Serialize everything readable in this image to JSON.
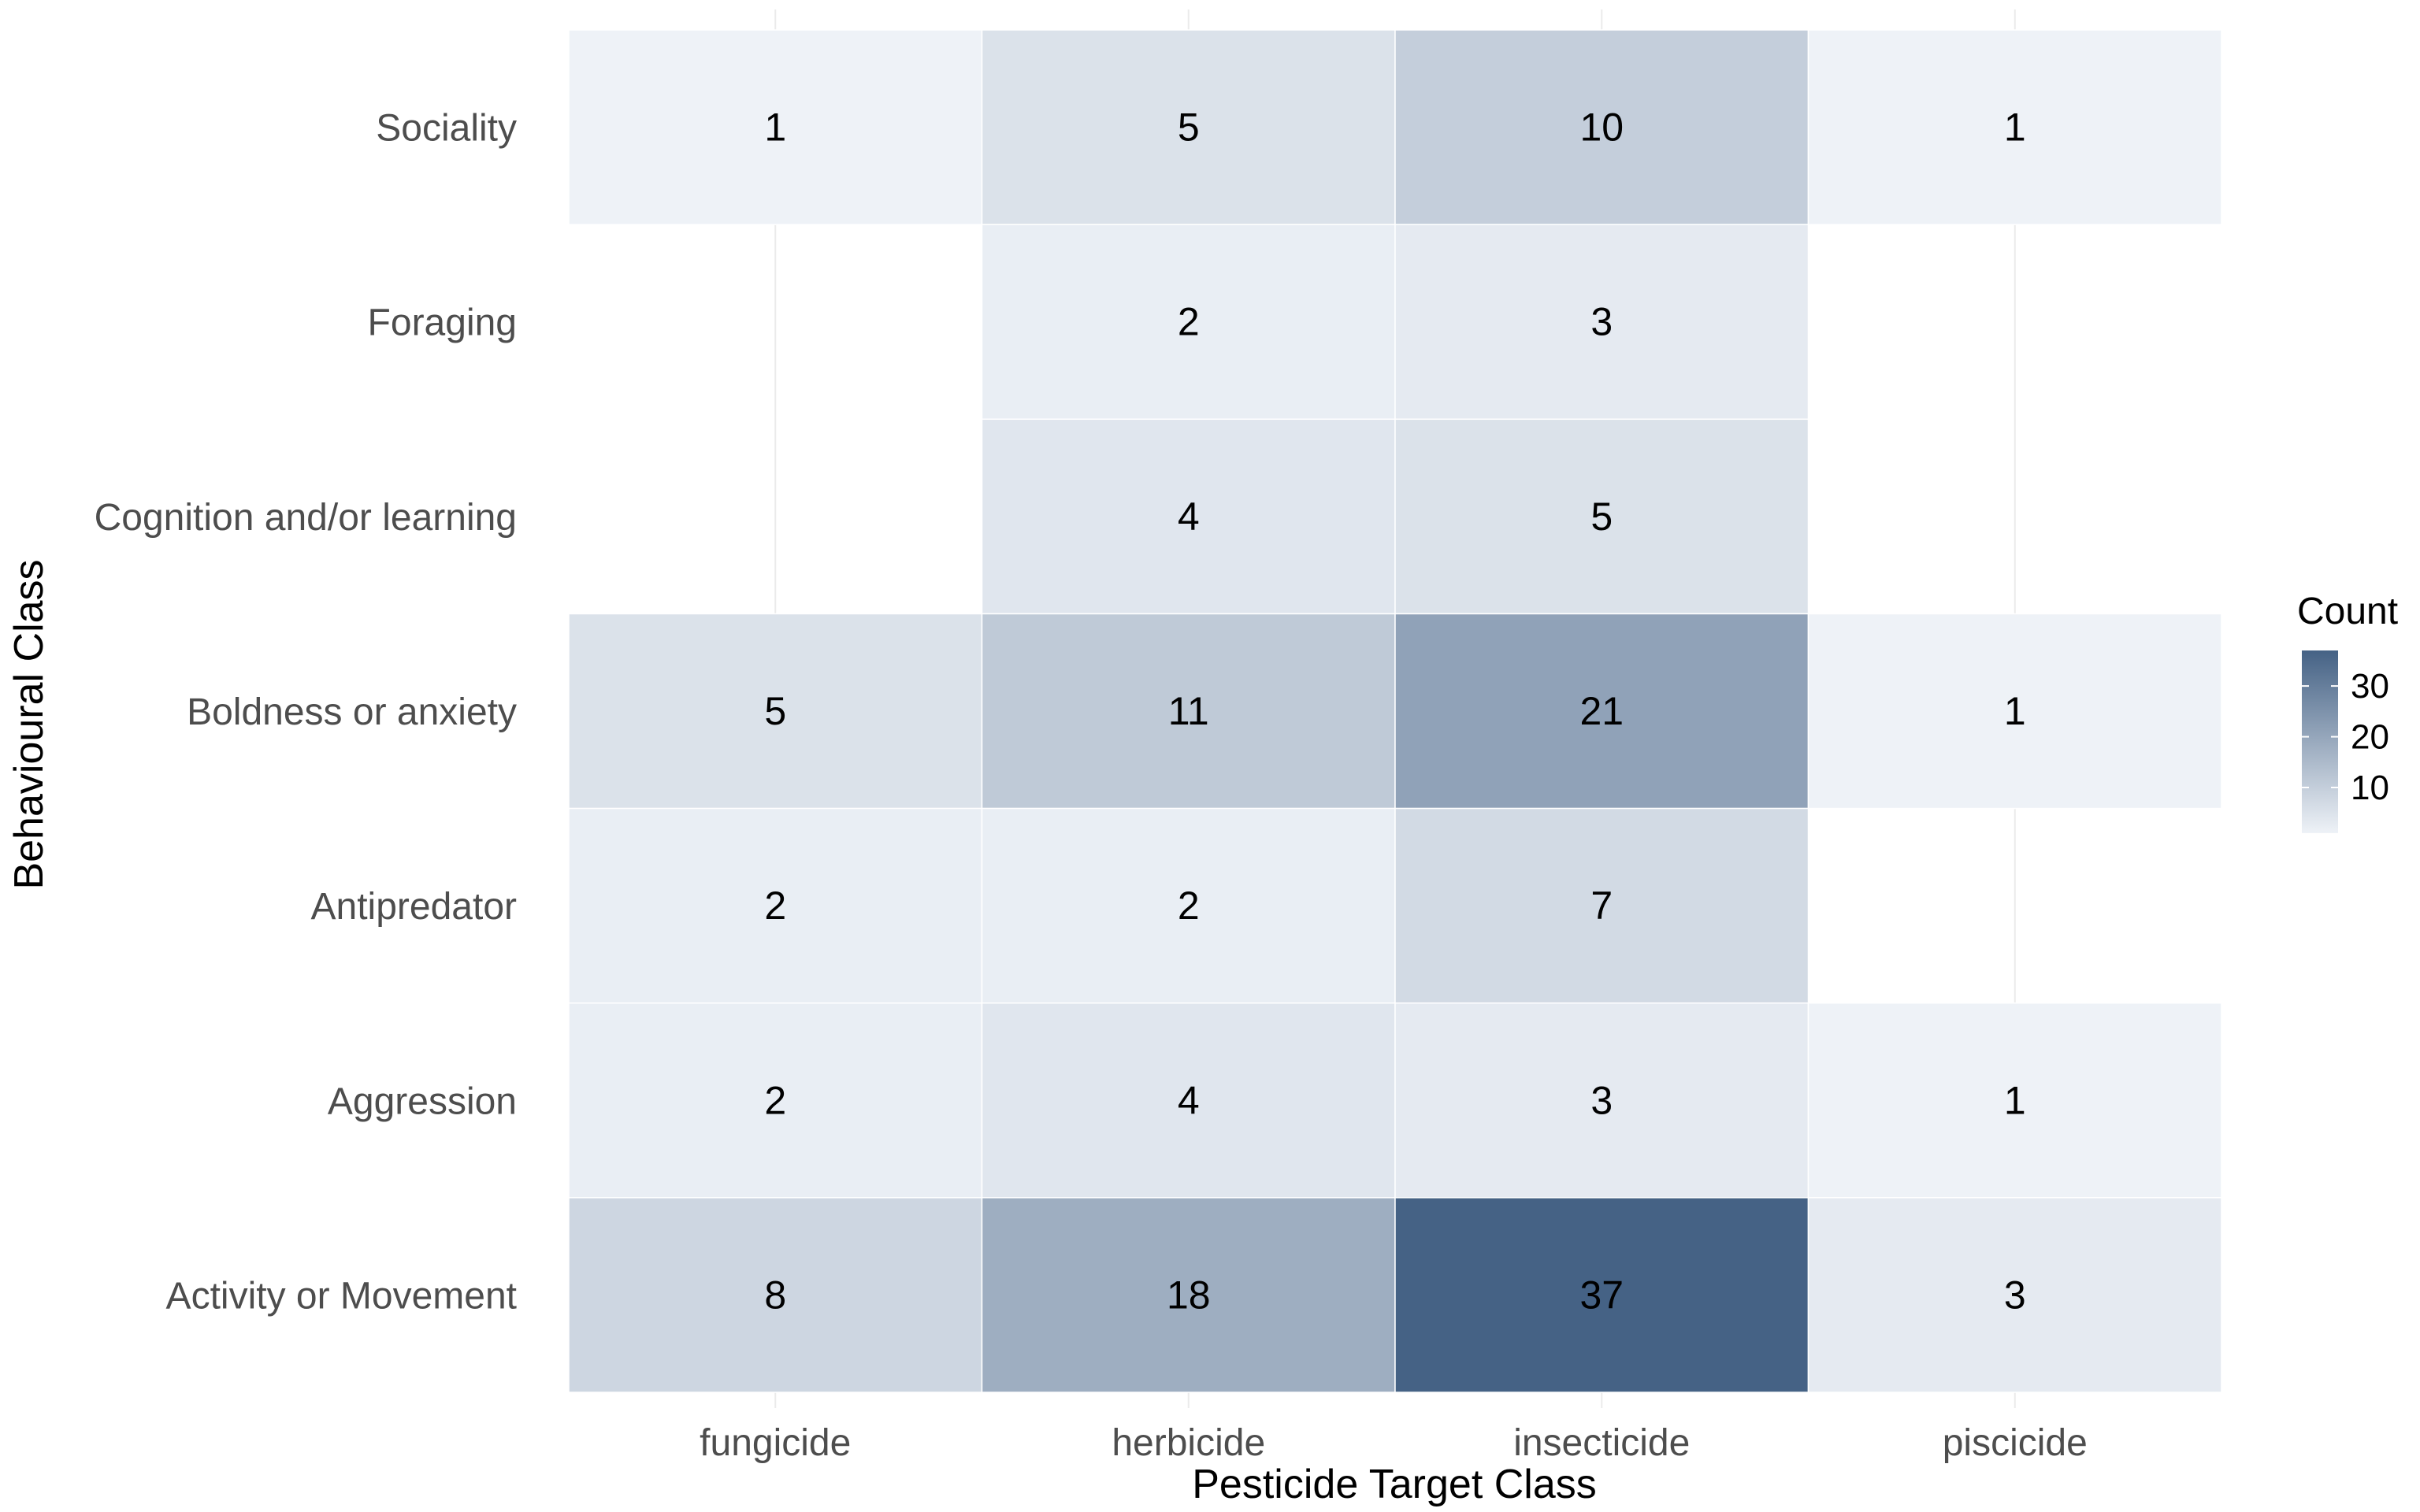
{
  "chart_data": {
    "type": "heatmap",
    "title": "",
    "xlabel": "Pesticide Target Class",
    "ylabel": "Behavioural Class",
    "x_categories": [
      "fungicide",
      "herbicide",
      "insecticide",
      "piscicide"
    ],
    "y_categories": [
      "Sociality",
      "Foraging",
      "Cognition and/or learning",
      "Boldness or anxiety",
      "Antipredator",
      "Aggression",
      "Activity or Movement"
    ],
    "values": [
      [
        1,
        5,
        10,
        1
      ],
      [
        null,
        2,
        3,
        null
      ],
      [
        null,
        4,
        5,
        null
      ],
      [
        5,
        11,
        21,
        1
      ],
      [
        2,
        2,
        7,
        null
      ],
      [
        2,
        4,
        3,
        1
      ],
      [
        8,
        18,
        37,
        3
      ]
    ],
    "legend": {
      "title": "Count",
      "ticks": [
        10,
        20,
        30
      ],
      "min": 1,
      "max": 37,
      "placement": "right"
    },
    "colors": {
      "low": "#eef2f7",
      "high": "#456285",
      "grid": "#ebebeb",
      "tick_text": "#4d4d4d",
      "title_text": "#000000"
    },
    "grid": true
  }
}
